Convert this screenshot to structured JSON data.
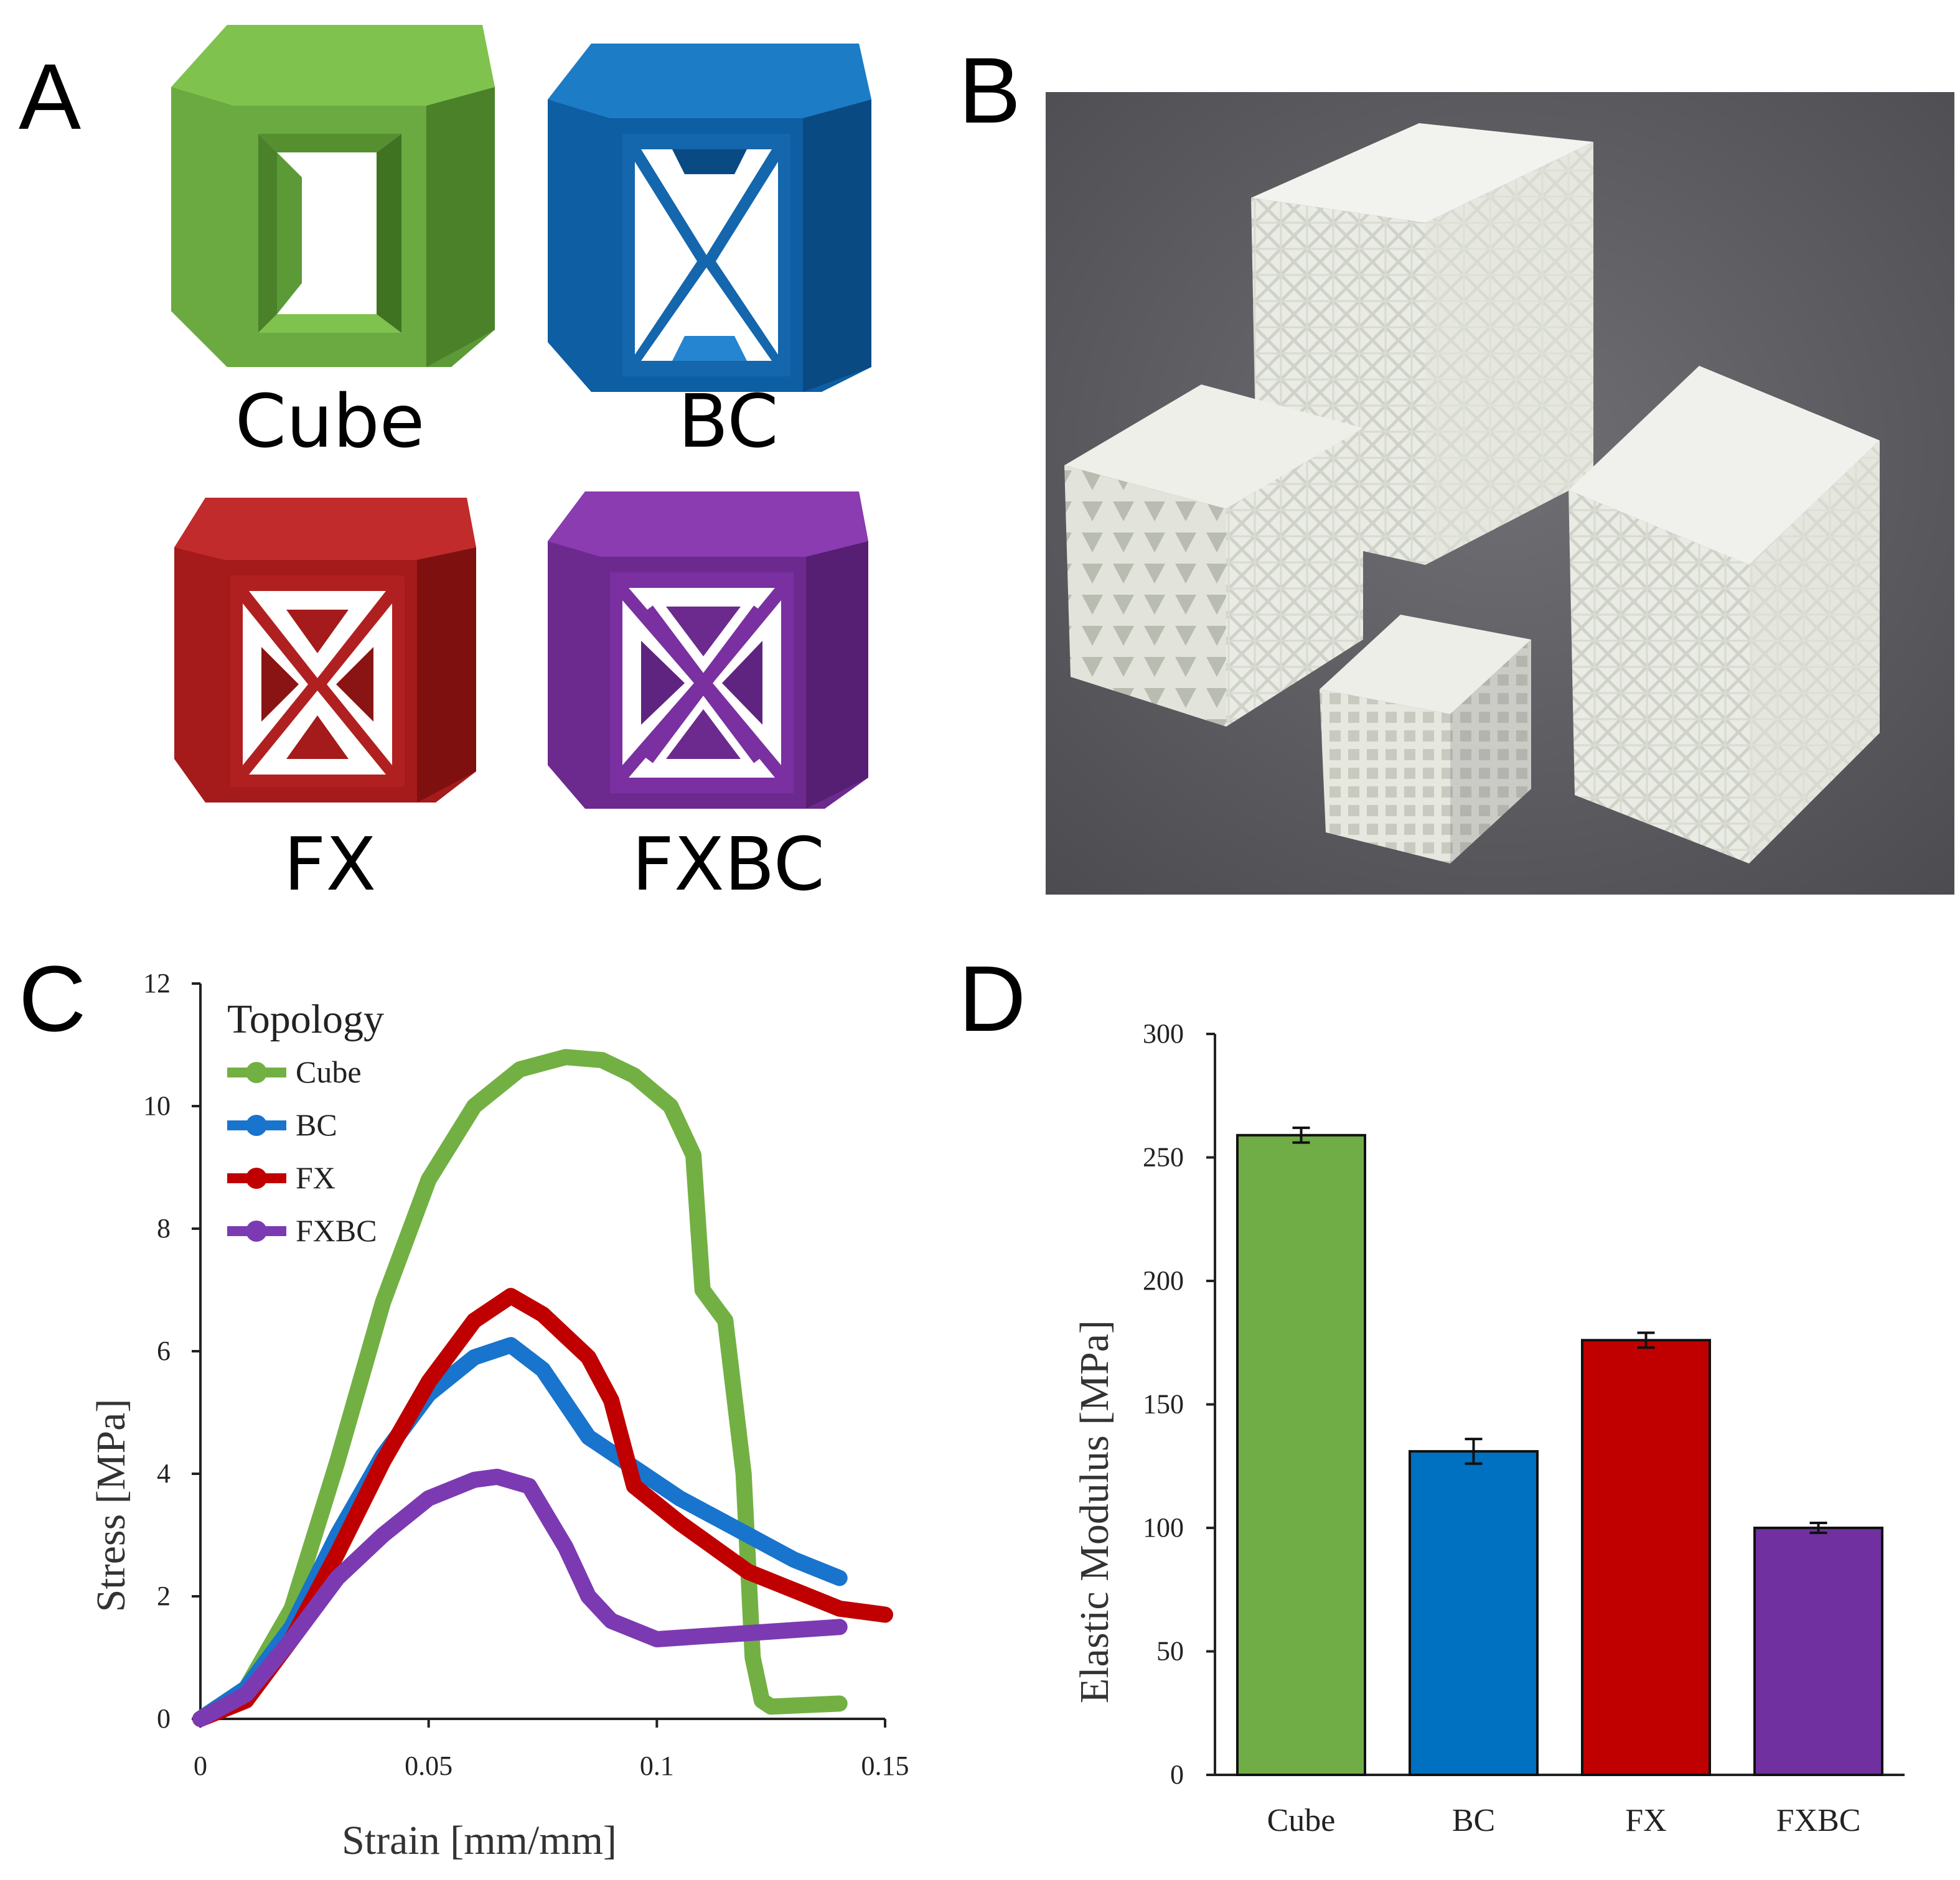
{
  "panels": {
    "a": "A",
    "b": "B",
    "c": "C",
    "d": "D"
  },
  "unit_cells": [
    {
      "label": "Cube",
      "color": "#6aa344",
      "icon": "cube-lattice-icon"
    },
    {
      "label": "BC",
      "color": "#0e63ad",
      "icon": "bc-lattice-icon"
    },
    {
      "label": "FX",
      "color": "#b41c1c",
      "icon": "fx-lattice-icon"
    },
    {
      "label": "FXBC",
      "color": "#7a2e9c",
      "icon": "fxbc-lattice-icon"
    }
  ],
  "chart_data": [
    {
      "type": "line",
      "xlabel": "Strain [mm/mm]",
      "ylabel": "Stress [MPa]",
      "xlim": [
        0,
        0.15
      ],
      "ylim": [
        0,
        12
      ],
      "xticks": [
        "0",
        "0.05",
        "0.1",
        "0.15"
      ],
      "yticks": [
        "0",
        "2",
        "4",
        "6",
        "8",
        "10",
        "12"
      ],
      "legend_title": "Topology",
      "legend_position": "top-left",
      "grid": false,
      "series": [
        {
          "name": "Cube",
          "color": "#72b043",
          "x": [
            0,
            0.01,
            0.02,
            0.03,
            0.04,
            0.05,
            0.06,
            0.07,
            0.08,
            0.088,
            0.095,
            0.103,
            0.108,
            0.11,
            0.115,
            0.119,
            0.121,
            0.123,
            0.125,
            0.14
          ],
          "y": [
            0,
            0.5,
            1.8,
            4.2,
            6.8,
            8.8,
            10.0,
            10.6,
            10.8,
            10.75,
            10.5,
            10.0,
            9.2,
            7.0,
            6.5,
            4.0,
            1.0,
            0.3,
            0.2,
            0.25
          ]
        },
        {
          "name": "BC",
          "color": "#1874cd",
          "x": [
            0,
            0.01,
            0.02,
            0.03,
            0.04,
            0.05,
            0.06,
            0.068,
            0.075,
            0.085,
            0.095,
            0.105,
            0.12,
            0.13,
            0.14
          ],
          "y": [
            0,
            0.5,
            1.5,
            3.0,
            4.3,
            5.3,
            5.9,
            6.1,
            5.7,
            4.6,
            4.1,
            3.6,
            3.0,
            2.6,
            2.3
          ]
        },
        {
          "name": "FX",
          "color": "#c00000",
          "x": [
            0,
            0.01,
            0.02,
            0.03,
            0.04,
            0.05,
            0.06,
            0.068,
            0.075,
            0.085,
            0.09,
            0.095,
            0.105,
            0.12,
            0.13,
            0.14,
            0.15
          ],
          "y": [
            0,
            0.3,
            1.3,
            2.7,
            4.2,
            5.5,
            6.5,
            6.9,
            6.6,
            5.9,
            5.2,
            3.8,
            3.2,
            2.4,
            2.1,
            1.8,
            1.7
          ]
        },
        {
          "name": "FXBC",
          "color": "#7c3ab2",
          "x": [
            0,
            0.01,
            0.02,
            0.03,
            0.04,
            0.05,
            0.06,
            0.065,
            0.072,
            0.08,
            0.085,
            0.09,
            0.1,
            0.11,
            0.12,
            0.13,
            0.14
          ],
          "y": [
            0,
            0.4,
            1.3,
            2.3,
            3.0,
            3.6,
            3.9,
            3.95,
            3.8,
            2.8,
            2.0,
            1.6,
            1.3,
            1.35,
            1.4,
            1.45,
            1.5
          ]
        }
      ]
    },
    {
      "type": "bar",
      "xlabel": "",
      "ylabel": "Elastic Modulus [MPa]",
      "ylim": [
        0,
        300
      ],
      "yticks": [
        "0",
        "50",
        "100",
        "150",
        "200",
        "250",
        "300"
      ],
      "grid": false,
      "categories": [
        "Cube",
        "BC",
        "FX",
        "FXBC"
      ],
      "values": [
        259,
        131,
        176,
        100
      ],
      "errors": [
        3,
        5,
        3,
        2
      ],
      "colors": [
        "#70ad47",
        "#0070c0",
        "#c00000",
        "#7030a0"
      ]
    }
  ]
}
